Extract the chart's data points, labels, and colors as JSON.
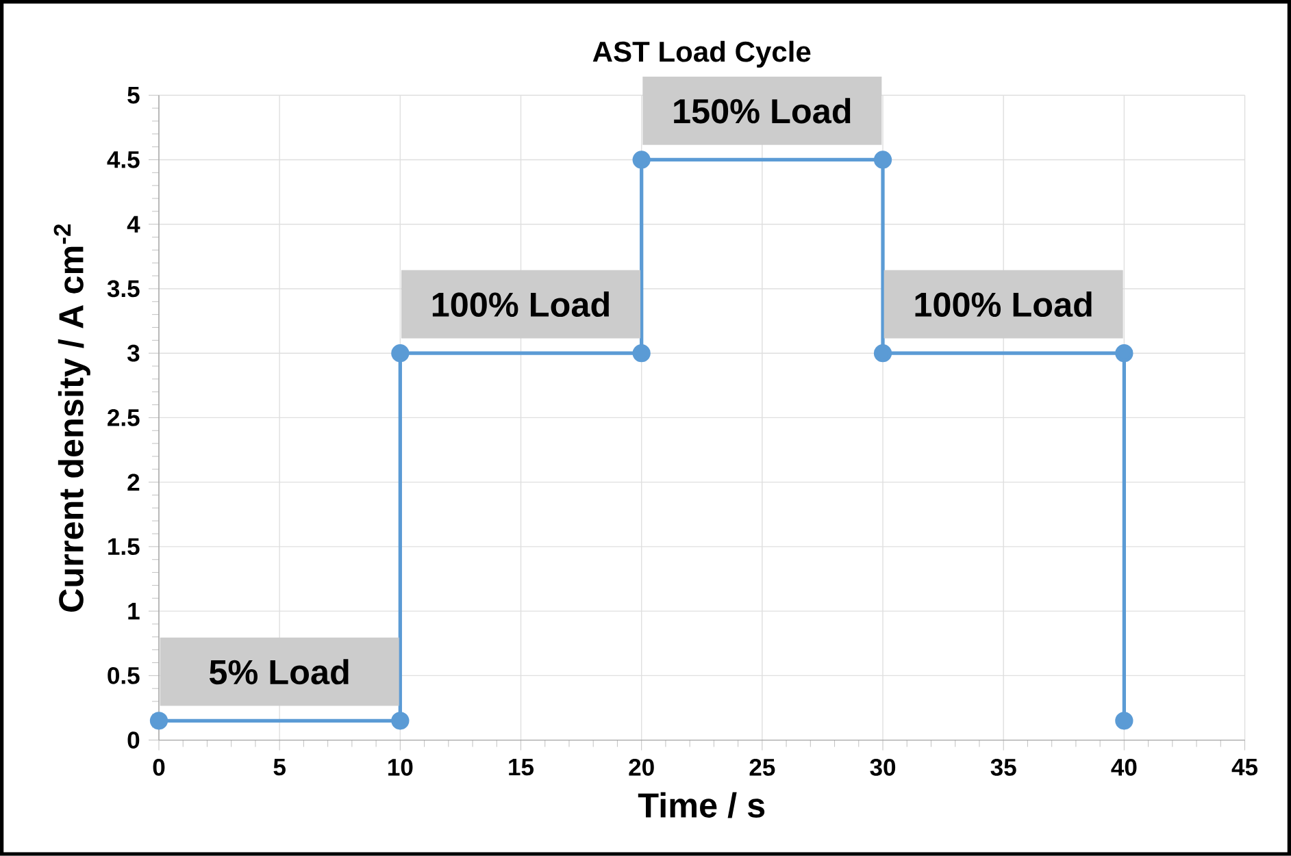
{
  "chart_data": {
    "type": "line",
    "title": "AST Load Cycle",
    "xlabel": "Time / s",
    "ylabel": "Current density / A cm$^{-2}$",
    "x": [
      0,
      10,
      10,
      20,
      20,
      30,
      30,
      40,
      40
    ],
    "series": [
      {
        "color": "#5b9bd5",
        "values": [
          0.15,
          0.15,
          3,
          3,
          4.5,
          4.5,
          3,
          3,
          0.15
        ]
      }
    ],
    "xlim": [
      0,
      45
    ],
    "xticks": [
      0,
      5,
      10,
      15,
      20,
      25,
      30,
      35,
      40,
      45
    ],
    "ylim": [
      0,
      5
    ],
    "yticks": [
      0,
      0.5,
      1,
      1.5,
      2,
      2.5,
      3,
      3.5,
      4,
      4.5,
      5
    ],
    "grid": true,
    "marker": "circle",
    "line_style": "solid",
    "annotations": [
      {
        "text": "5% Load",
        "x": 5,
        "y": 0.15
      },
      {
        "text": "100% Load",
        "x": 15,
        "y": 3
      },
      {
        "text": "150% Load",
        "x": 25,
        "y": 4.5
      },
      {
        "text": "100% Load",
        "x": 35,
        "y": 3
      }
    ]
  }
}
